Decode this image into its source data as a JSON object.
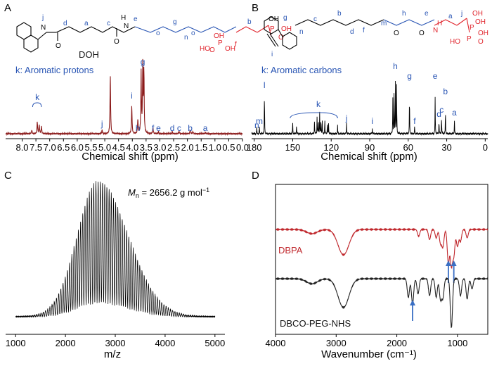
{
  "panels": [
    {
      "letter": "A",
      "annotation_lines": [
        "DOH",
        "k: Aromatic protons"
      ],
      "peak_labels": [
        {
          "t": "k",
          "x": 7.45
        },
        {
          "t": "j",
          "x": 5.1
        },
        {
          "t": "i",
          "x": 4.02
        },
        {
          "t": "h",
          "x": 3.8
        },
        {
          "t": "g",
          "x": 3.62
        },
        {
          "t": "f",
          "x": 3.25
        },
        {
          "t": "e",
          "x": 3.05
        },
        {
          "t": "d",
          "x": 2.55
        },
        {
          "t": "c",
          "x": 2.3
        },
        {
          "t": "b",
          "x": 1.9
        },
        {
          "t": "a",
          "x": 1.35
        }
      ],
      "molecule_labels": [
        "j",
        "d",
        "a",
        "c",
        "e",
        "H",
        "N",
        "O",
        "O",
        "g",
        "n",
        "o",
        "o",
        "f",
        "b",
        "OH",
        "OH",
        "HO",
        "P",
        "P",
        "OH",
        "OH",
        "O",
        "O",
        "N"
      ]
    },
    {
      "letter": "B",
      "annotation_lines": [
        "k: Aromatic carbons"
      ],
      "peak_labels": [
        {
          "t": "n",
          "x": 178
        },
        {
          "t": "m",
          "x": 176
        },
        {
          "t": "l",
          "x": 172
        },
        {
          "t": "k",
          "x": 130
        },
        {
          "t": "j",
          "x": 108
        },
        {
          "t": "i",
          "x": 88
        },
        {
          "t": "h",
          "x": 70
        },
        {
          "t": "g",
          "x": 59
        },
        {
          "t": "f",
          "x": 55
        },
        {
          "t": "e",
          "x": 39
        },
        {
          "t": "d",
          "x": 36
        },
        {
          "t": "c",
          "x": 34
        },
        {
          "t": "b",
          "x": 31
        },
        {
          "t": "a",
          "x": 24
        }
      ],
      "molecule_labels": [
        "g",
        "n",
        "c",
        "b",
        "d",
        "f",
        "m",
        "N",
        "H",
        "h",
        "e",
        "a",
        "j",
        "OH",
        "O",
        "O",
        "P",
        "OH",
        "OH",
        "HO",
        "P",
        "O",
        "i"
      ]
    },
    {
      "letter": "C",
      "annotation": {
        "var": "M",
        "sub": "n",
        "text": " = 2656.2 g mol",
        "sup": "−1"
      }
    },
    {
      "letter": "D",
      "series_text": [
        "DBPA",
        "DBCO-PEG-NHS"
      ],
      "colors": {
        "DBPA": "#c0282d",
        "DBCO-PEG-NHS": "#222222"
      },
      "arrow_color": "#3a6fc4"
    }
  ],
  "chart_data": [
    {
      "type": "line",
      "panel": "A",
      "xlabel": "Chemical shift (ppm)",
      "xlim": [
        8.6,
        0.0
      ],
      "ticks": [
        "8.0",
        "7.5",
        "7.0",
        "6.5",
        "6.0",
        "5.5",
        "5.0",
        "4.5",
        "4.0",
        "3.5",
        "3.0",
        "2.5",
        "2.0",
        "1.5",
        "1.0",
        "0.5",
        "0.0"
      ],
      "tick_values": [
        8.0,
        7.5,
        7.0,
        6.5,
        6.0,
        5.5,
        5.0,
        4.5,
        4.0,
        3.5,
        3.0,
        2.5,
        2.0,
        1.5,
        1.0,
        0.5,
        0.0
      ],
      "series": [
        {
          "values_x": [
            7.65,
            7.45,
            7.38,
            7.3,
            5.1,
            4.8,
            4.02,
            3.8,
            3.68,
            3.62,
            3.58,
            3.25,
            3.05,
            2.55,
            2.3,
            1.9,
            1.8,
            1.35
          ],
          "values_y": [
            0.05,
            0.16,
            0.12,
            0.1,
            0.05,
            0.8,
            0.38,
            0.19,
            0.79,
            0.88,
            0.82,
            0.08,
            0.03,
            0.03,
            0.03,
            0.05,
            0.03,
            0.02
          ]
        }
      ]
    },
    {
      "type": "line",
      "panel": "B",
      "xlabel": "Chemical shift (ppm)",
      "xlim": [
        182,
        -2
      ],
      "ticks": [
        "180",
        "150",
        "120",
        "90",
        "60",
        "30",
        "0"
      ],
      "tick_values": [
        180,
        150,
        120,
        90,
        60,
        30,
        0
      ],
      "series": [
        {
          "values_x": [
            178,
            176,
            172,
            150,
            147,
            133,
            131,
            130,
            129,
            128,
            127,
            125,
            123,
            122,
            115,
            108,
            88,
            72,
            71,
            70,
            69,
            59,
            55,
            39,
            36,
            34,
            31,
            24
          ],
          "values_y": [
            0.1,
            0.12,
            0.6,
            0.16,
            0.12,
            0.2,
            0.25,
            0.22,
            0.3,
            0.22,
            0.18,
            0.2,
            0.16,
            0.14,
            0.12,
            0.16,
            0.08,
            0.55,
            0.65,
            0.9,
            0.72,
            0.58,
            0.11,
            0.55,
            0.2,
            0.24,
            0.34,
            0.22
          ]
        }
      ]
    },
    {
      "type": "line",
      "panel": "C",
      "xlabel": "m/z",
      "xlim": [
        800,
        5200
      ],
      "ticks": [
        "1000",
        "2000",
        "3000",
        "4000",
        "5000"
      ],
      "tick_values": [
        1000,
        2000,
        3000,
        4000,
        5000
      ],
      "envelope": {
        "x_start": 1000,
        "x_end": 5000,
        "peak_x": 2656.2,
        "peak_height": 0.92,
        "width_left": 420,
        "width_right": 600,
        "spacing": 44
      }
    },
    {
      "type": "line",
      "panel": "D",
      "xlabel": "Wavenumber (cm⁻¹)",
      "xlim": [
        4000,
        500
      ],
      "ticks": [
        "4000",
        "3000",
        "2000",
        "1000"
      ],
      "tick_values": [
        4000,
        3000,
        2000,
        1000
      ],
      "series": [
        {
          "name": "DBPA",
          "band_x": [
            3400,
            2880,
            1640,
            1460,
            1350,
            1280,
            1240,
            1150,
            1100,
            1060,
            1000,
            950,
            840
          ],
          "band_depth": [
            0.05,
            0.3,
            0.08,
            0.12,
            0.1,
            0.16,
            0.2,
            0.4,
            0.42,
            0.3,
            0.2,
            0.14,
            0.1
          ],
          "arrows_x": [
            1150,
            1060
          ]
        },
        {
          "name": "DBCO-PEG-NHS",
          "band_x": [
            3400,
            2880,
            1810,
            1740,
            1650,
            1460,
            1350,
            1280,
            1240,
            1100,
            950,
            840,
            760
          ],
          "band_depth": [
            0.06,
            0.34,
            0.22,
            0.3,
            0.18,
            0.2,
            0.22,
            0.24,
            0.22,
            0.58,
            0.2,
            0.24,
            0.12
          ],
          "arrows_x": [
            1740
          ]
        }
      ]
    }
  ]
}
